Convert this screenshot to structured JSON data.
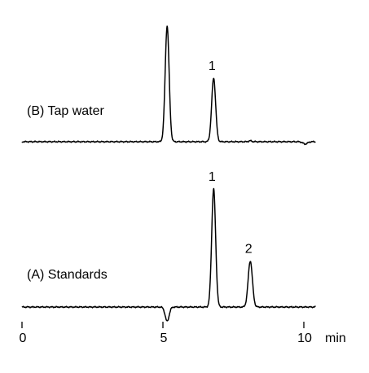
{
  "chart_data": {
    "type": "line",
    "xlabel": "",
    "ylabel": "",
    "xunit": "min",
    "xlim": [
      0,
      10.5
    ],
    "x_ticks": [
      0,
      5,
      10
    ],
    "x_tick_labels": [
      "0",
      "5",
      "10"
    ],
    "traces": [
      {
        "name": "(B) Tap water",
        "baseline": 0,
        "peaks": [
          {
            "rt": 5.15,
            "height": 100,
            "width": 0.07,
            "label": ""
          },
          {
            "rt": 6.8,
            "height": 55,
            "width": 0.07,
            "label": "1"
          },
          {
            "rt": 8.1,
            "height": 0.8,
            "width": 0.05,
            "label": ""
          },
          {
            "rt": 10.05,
            "height": -2,
            "width": 0.08,
            "label": ""
          }
        ]
      },
      {
        "name": "(A) Standards",
        "baseline": 0,
        "peaks": [
          {
            "rt": 5.15,
            "height": -12,
            "width": 0.07,
            "label": ""
          },
          {
            "rt": 6.8,
            "height": 100,
            "width": 0.07,
            "label": "1"
          },
          {
            "rt": 8.1,
            "height": 39,
            "width": 0.075,
            "label": "2"
          }
        ]
      }
    ]
  },
  "colors": {
    "line": "#000000",
    "background": "#ffffff"
  }
}
